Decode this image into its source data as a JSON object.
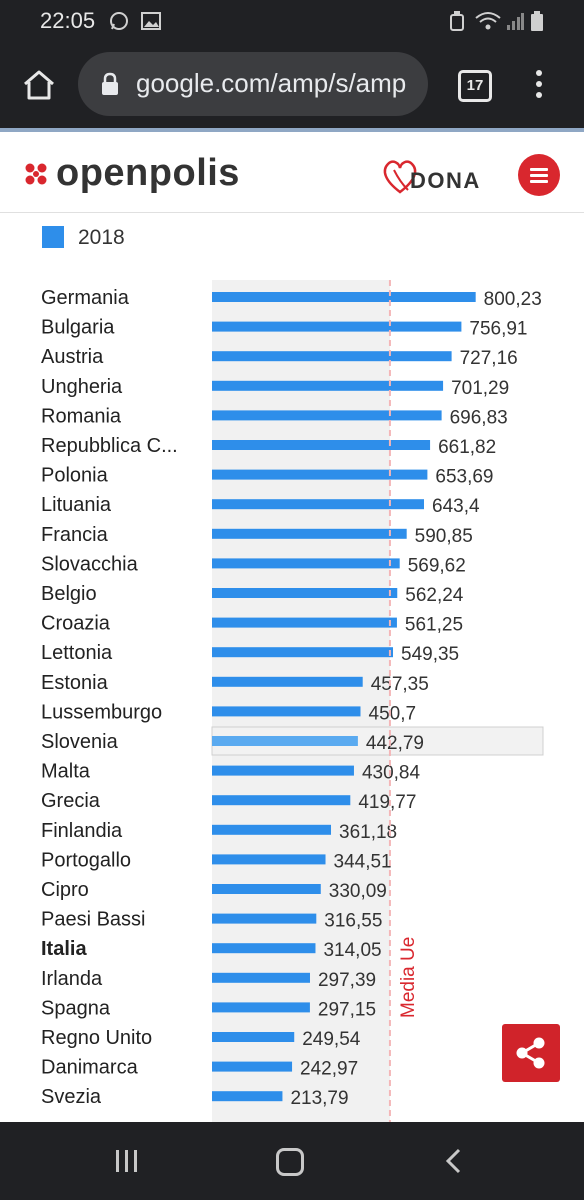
{
  "status_bar": {
    "time": "22:05",
    "icons": [
      "whatsapp-icon",
      "image-icon",
      "cleaner-icon",
      "wifi-icon",
      "signal-icon",
      "battery-icon"
    ]
  },
  "browser": {
    "url": "google.com/amp/s/amp",
    "tab_count": "17"
  },
  "site": {
    "logo_text": "openpolis",
    "donate_label": "DONA",
    "accent_color": "#d9272e"
  },
  "chart_data": {
    "type": "bar",
    "orientation": "horizontal",
    "legend": [
      "2018"
    ],
    "bar_color": "#2e8eea",
    "categories": [
      "Germania",
      "Bulgaria",
      "Austria",
      "Ungheria",
      "Romania",
      "Repubblica C...",
      "Polonia",
      "Lituania",
      "Francia",
      "Slovacchia",
      "Belgio",
      "Croazia",
      "Lettonia",
      "Estonia",
      "Lussemburgo",
      "Slovenia",
      "Malta",
      "Grecia",
      "Finlandia",
      "Portogallo",
      "Cipro",
      "Paesi Bassi",
      "Italia",
      "Irlanda",
      "Spagna",
      "Regno Unito",
      "Danimarca",
      "Svezia"
    ],
    "value_labels": [
      "800,23",
      "756,91",
      "727,16",
      "701,29",
      "696,83",
      "661,82",
      "653,69",
      "643,4",
      "590,85",
      "569,62",
      "562,24",
      "561,25",
      "549,35",
      "457,35",
      "450,7",
      "442,79",
      "430,84",
      "419,77",
      "361,18",
      "344,51",
      "330,09",
      "316,55",
      "314,05",
      "297,39",
      "297,15",
      "249,54",
      "242,97",
      "213,79"
    ],
    "series": [
      {
        "name": "2018",
        "values": [
          800.23,
          756.91,
          727.16,
          701.29,
          696.83,
          661.82,
          653.69,
          643.4,
          590.85,
          569.62,
          562.24,
          561.25,
          549.35,
          457.35,
          450.7,
          442.79,
          430.84,
          419.77,
          361.18,
          344.51,
          330.09,
          316.55,
          314.05,
          297.39,
          297.15,
          249.54,
          242.97,
          213.79
        ]
      }
    ],
    "highlight_category": "Italia",
    "hovered_category": "Slovenia",
    "reference_line": {
      "label": "Media Ue",
      "value": 540,
      "color": "#d9272e"
    },
    "xlim": [
      0,
      1000
    ]
  },
  "nav_bar": {
    "buttons": [
      "recent-apps-button",
      "home-button",
      "back-button"
    ]
  }
}
